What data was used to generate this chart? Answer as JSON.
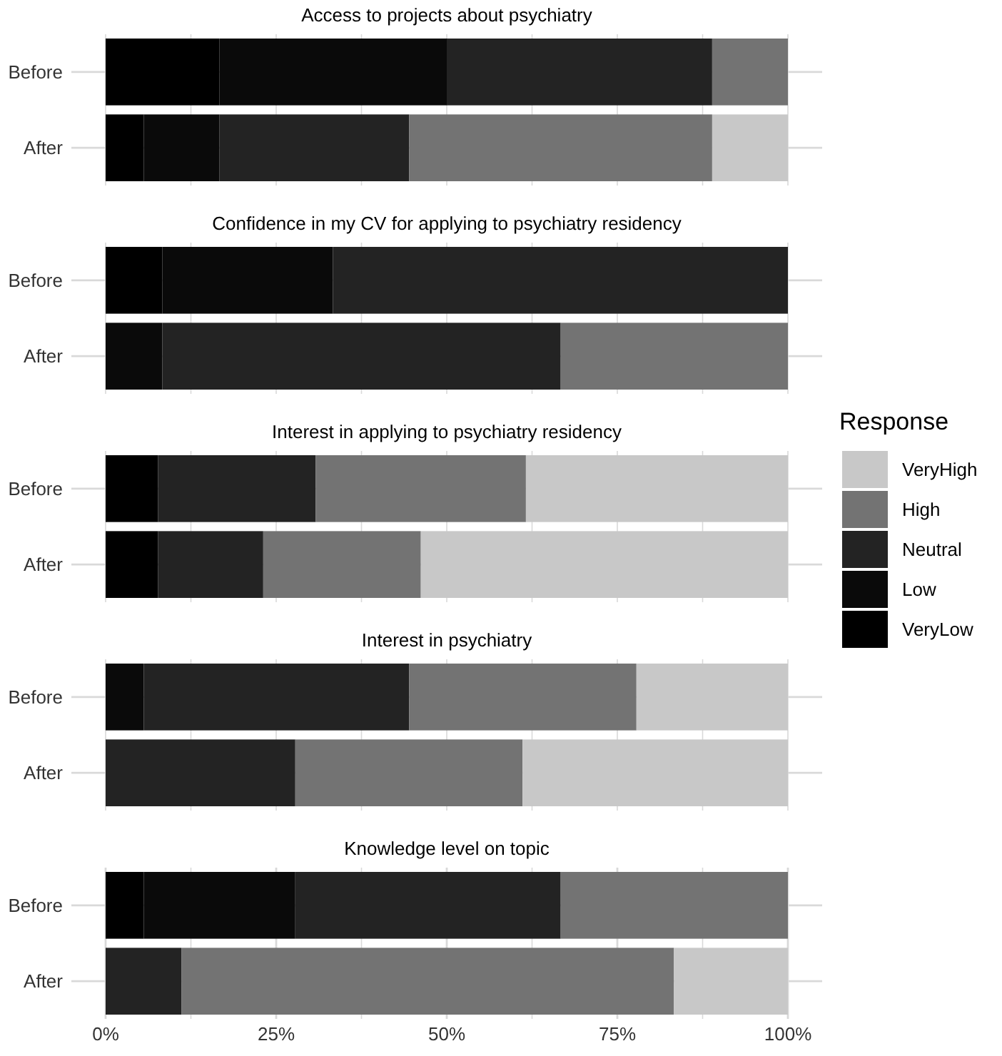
{
  "chart_data": [
    {
      "type": "bar",
      "orientation": "horizontal",
      "stacked": true,
      "title": "Access to projects about psychiatry",
      "categories": [
        "Before",
        "After"
      ],
      "xlim": [
        0,
        100
      ],
      "xticks": [
        {
          "value": 0,
          "label": null
        },
        {
          "value": 12.5,
          "label": null
        },
        {
          "value": 25,
          "label": null
        },
        {
          "value": 37.5,
          "label": null
        },
        {
          "value": 50,
          "label": null
        },
        {
          "value": 62.5,
          "label": null
        },
        {
          "value": 75,
          "label": null
        },
        {
          "value": 87.5,
          "label": null
        },
        {
          "value": 100,
          "label": null
        }
      ],
      "tick_labels": "y",
      "grid": true,
      "legend": false,
      "series": [
        {
          "color": "#000000",
          "values": [
            16.7,
            5.6
          ]
        },
        {
          "color": "#0a0a0a",
          "values": [
            33.3,
            11.1
          ]
        },
        {
          "color": "#232323",
          "values": [
            38.9,
            27.8
          ]
        },
        {
          "color": "#737373",
          "values": [
            11.1,
            44.4
          ]
        },
        {
          "color": "#c8c8c8",
          "values": [
            null,
            11.1
          ]
        }
      ]
    },
    {
      "type": "bar",
      "orientation": "horizontal",
      "stacked": true,
      "title": "Confidence in my CV for applying to psychiatry residency",
      "categories": [
        "Before",
        "After"
      ],
      "xlim": [
        0,
        100
      ],
      "xticks": [
        {
          "value": 0,
          "label": null
        },
        {
          "value": 12.5,
          "label": null
        },
        {
          "value": 25,
          "label": null
        },
        {
          "value": 37.5,
          "label": null
        },
        {
          "value": 50,
          "label": null
        },
        {
          "value": 62.5,
          "label": null
        },
        {
          "value": 75,
          "label": null
        },
        {
          "value": 87.5,
          "label": null
        },
        {
          "value": 100,
          "label": null
        }
      ],
      "tick_labels": "y",
      "grid": true,
      "legend": false,
      "series": [
        {
          "color": "#000000",
          "values": [
            8.3,
            null
          ]
        },
        {
          "color": "#0a0a0a",
          "values": [
            25,
            8.3
          ]
        },
        {
          "color": "#232323",
          "values": [
            66.7,
            58.4
          ]
        },
        {
          "color": "#737373",
          "values": [
            null,
            33.3
          ]
        }
      ]
    },
    {
      "type": "bar",
      "orientation": "horizontal",
      "stacked": true,
      "title": "Interest in applying to psychiatry residency",
      "categories": [
        "Before",
        "After"
      ],
      "xlim": [
        0,
        100
      ],
      "xticks": [
        {
          "value": 0,
          "label": null
        },
        {
          "value": 12.5,
          "label": null
        },
        {
          "value": 25,
          "label": null
        },
        {
          "value": 37.5,
          "label": null
        },
        {
          "value": 50,
          "label": null
        },
        {
          "value": 62.5,
          "label": null
        },
        {
          "value": 75,
          "label": null
        },
        {
          "value": 87.5,
          "label": null
        },
        {
          "value": 100,
          "label": null
        }
      ],
      "tick_labels": "y",
      "grid": true,
      "legend": "right",
      "legend_title": "Response",
      "series": [
        {
          "name": "VeryLow",
          "color": "#000000",
          "values": [
            7.7,
            7.7
          ]
        },
        {
          "name": "Low",
          "color": "#0a0a0a",
          "values": [
            null,
            null
          ]
        },
        {
          "name": "Neutral",
          "color": "#232323",
          "values": [
            23.1,
            15.4
          ]
        },
        {
          "name": "High",
          "color": "#737373",
          "values": [
            30.8,
            23.1
          ]
        },
        {
          "name": "VeryHigh",
          "color": "#c8c8c8",
          "values": [
            38.4,
            53.8
          ]
        }
      ]
    },
    {
      "type": "bar",
      "orientation": "horizontal",
      "stacked": true,
      "title": "Interest in psychiatry",
      "categories": [
        "Before",
        "After"
      ],
      "xlim": [
        0,
        100
      ],
      "xticks": [
        {
          "value": 0,
          "label": null
        },
        {
          "value": 12.5,
          "label": null
        },
        {
          "value": 25,
          "label": null
        },
        {
          "value": 37.5,
          "label": null
        },
        {
          "value": 50,
          "label": null
        },
        {
          "value": 62.5,
          "label": null
        },
        {
          "value": 75,
          "label": null
        },
        {
          "value": 87.5,
          "label": null
        },
        {
          "value": 100,
          "label": null
        }
      ],
      "tick_labels": "y",
      "grid": true,
      "legend": false,
      "series": [
        {
          "color": "#0a0a0a",
          "values": [
            5.6,
            null
          ]
        },
        {
          "color": "#232323",
          "values": [
            38.9,
            27.8
          ]
        },
        {
          "color": "#737373",
          "values": [
            33.3,
            33.3
          ]
        },
        {
          "color": "#c8c8c8",
          "values": [
            22.2,
            38.9
          ]
        }
      ]
    },
    {
      "type": "bar",
      "orientation": "horizontal",
      "stacked": true,
      "title": "Knowledge level on topic",
      "categories": [
        "Before",
        "After"
      ],
      "xlim": [
        0,
        100
      ],
      "xticks": [
        {
          "value": 0,
          "label": "0%"
        },
        {
          "value": 12.5,
          "label": null
        },
        {
          "value": 25,
          "label": "25%"
        },
        {
          "value": 37.5,
          "label": null
        },
        {
          "value": 50,
          "label": "50%"
        },
        {
          "value": 62.5,
          "label": null
        },
        {
          "value": 75,
          "label": "75%"
        },
        {
          "value": 87.5,
          "label": null
        },
        {
          "value": 100,
          "label": "100%"
        }
      ],
      "grid": true,
      "legend": false,
      "series": [
        {
          "color": "#000000",
          "values": [
            5.6,
            null
          ]
        },
        {
          "color": "#0a0a0a",
          "values": [
            22.2,
            null
          ]
        },
        {
          "color": "#232323",
          "values": [
            38.9,
            11.1
          ]
        },
        {
          "color": "#737373",
          "values": [
            33.3,
            72.2
          ]
        },
        {
          "color": "#c8c8c8",
          "values": [
            null,
            16.7
          ]
        }
      ]
    }
  ]
}
